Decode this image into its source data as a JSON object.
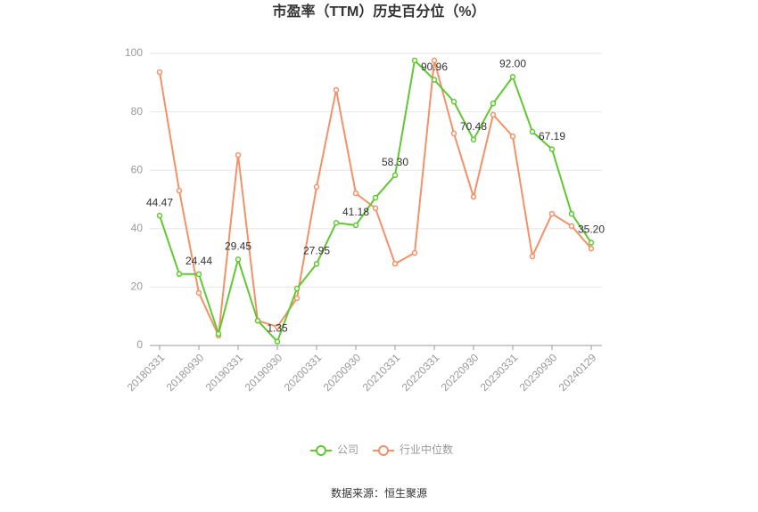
{
  "chart_data": {
    "type": "line",
    "title": "市盈率（TTM）历史百分位（%）",
    "source": "数据来源：恒生聚源",
    "categories": [
      "20180331",
      null,
      "20180930",
      null,
      "20190331",
      null,
      "20190930",
      null,
      "20200331",
      null,
      "20200930",
      null,
      "20210331",
      null,
      "20220331",
      null,
      "20220930",
      null,
      "20230331",
      null,
      "20230930",
      null,
      "20240129"
    ],
    "series": [
      {
        "name": "公司",
        "color": "#62c832",
        "values": [
          44.47,
          24.5,
          24.44,
          4.0,
          29.45,
          8.5,
          1.35,
          19.5,
          27.95,
          42.0,
          41.18,
          50.6,
          58.3,
          97.6,
          90.96,
          83.5,
          70.48,
          82.9,
          92.0,
          73.2,
          67.19,
          45.1,
          35.2
        ],
        "value_labels": [
          "44.47",
          null,
          "24.44",
          null,
          "29.45",
          null,
          "1.35",
          null,
          "27.95",
          null,
          "41.18",
          null,
          "58.30",
          null,
          "90.96",
          null,
          "70.48",
          null,
          "92.00",
          null,
          "67.19",
          null,
          "35.20"
        ]
      },
      {
        "name": "行业中位数",
        "color": "#f39168",
        "values": [
          93.6,
          53.0,
          18.0,
          3.4,
          65.2,
          8.5,
          6.4,
          16.2,
          54.3,
          87.5,
          52.1,
          47.0,
          28.0,
          31.7,
          97.6,
          72.6,
          50.9,
          79.0,
          71.6,
          30.5,
          45.1,
          40.9,
          33.2
        ]
      }
    ],
    "ylim": [
      0,
      100
    ],
    "yticks": [
      0,
      20,
      40,
      60,
      80,
      100
    ],
    "grid": true,
    "legend": "bottom"
  }
}
